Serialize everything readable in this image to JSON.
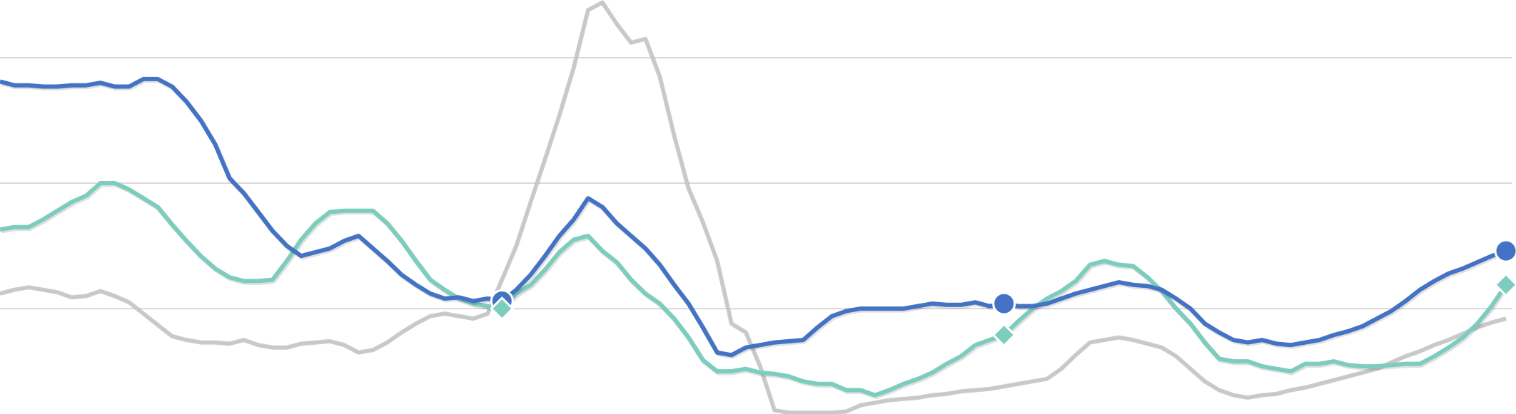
{
  "chart_data": {
    "type": "line",
    "title": "",
    "xlabel": "",
    "ylabel": "",
    "x_points": 106,
    "ylim": [
      1.6,
      34.6
    ],
    "gridlines": [
      10,
      20,
      30
    ],
    "grid": "horizontal",
    "legend": "none",
    "series": [
      {
        "color": "#4472C4",
        "marker": "circle",
        "marker_indices": [
          35,
          70,
          105
        ],
        "values": [
          28.1,
          27.8,
          27.8,
          27.7,
          27.7,
          27.8,
          27.8,
          28.0,
          27.7,
          27.7,
          28.3,
          28.3,
          27.7,
          26.5,
          25.0,
          23.1,
          20.4,
          19.2,
          17.7,
          16.2,
          15.0,
          14.2,
          14.5,
          14.8,
          15.4,
          15.8,
          14.8,
          13.8,
          12.7,
          11.9,
          11.2,
          10.8,
          10.9,
          10.6,
          10.8,
          10.6,
          11.5,
          12.7,
          14.2,
          15.8,
          17.1,
          18.8,
          18.1,
          16.8,
          15.8,
          14.8,
          13.5,
          11.9,
          10.4,
          8.5,
          6.5,
          6.3,
          6.9,
          7.1,
          7.3,
          7.4,
          7.5,
          8.5,
          9.4,
          9.8,
          10.0,
          10.0,
          10.0,
          10.0,
          10.2,
          10.4,
          10.3,
          10.3,
          10.5,
          10.2,
          10.4,
          10.2,
          10.2,
          10.4,
          10.8,
          11.2,
          11.5,
          11.8,
          12.1,
          11.9,
          11.8,
          11.5,
          10.8,
          10.0,
          8.8,
          8.1,
          7.5,
          7.3,
          7.5,
          7.2,
          7.1,
          7.3,
          7.5,
          7.9,
          8.2,
          8.6,
          9.2,
          9.8,
          10.6,
          11.5,
          12.2,
          12.8,
          13.2,
          13.7,
          14.2,
          14.6
        ]
      },
      {
        "color": "#7DCDBE",
        "marker": "diamond",
        "marker_indices": [
          35,
          70,
          105
        ],
        "values": [
          16.3,
          16.5,
          16.5,
          17.1,
          17.8,
          18.5,
          19.0,
          20.0,
          20.0,
          19.5,
          18.8,
          18.1,
          16.7,
          15.4,
          14.2,
          13.2,
          12.5,
          12.2,
          12.2,
          12.3,
          13.8,
          15.5,
          16.8,
          17.7,
          17.8,
          17.8,
          17.8,
          16.8,
          15.4,
          13.8,
          12.3,
          11.5,
          10.8,
          10.4,
          10.2,
          10.0,
          11.2,
          11.9,
          13.1,
          14.5,
          15.5,
          15.8,
          14.6,
          13.7,
          12.3,
          11.2,
          10.4,
          9.2,
          7.7,
          5.9,
          5.0,
          5.0,
          5.2,
          4.9,
          4.8,
          4.6,
          4.2,
          4.0,
          4.0,
          3.5,
          3.5,
          3.1,
          3.5,
          4.0,
          4.4,
          4.9,
          5.6,
          6.2,
          7.1,
          7.5,
          7.9,
          9.0,
          10.0,
          10.8,
          11.4,
          12.2,
          13.5,
          13.8,
          13.5,
          13.4,
          12.5,
          11.4,
          10.0,
          8.8,
          7.3,
          6.0,
          5.8,
          5.8,
          5.4,
          5.2,
          5.0,
          5.6,
          5.6,
          5.8,
          5.5,
          5.4,
          5.4,
          5.5,
          5.6,
          5.6,
          6.2,
          6.9,
          7.7,
          8.8,
          10.2,
          11.9
        ]
      },
      {
        "color": "#C8C8C8",
        "marker": "none",
        "values": [
          11.2,
          11.5,
          11.7,
          11.5,
          11.3,
          10.9,
          11.0,
          11.4,
          11.0,
          10.5,
          9.6,
          8.7,
          7.8,
          7.5,
          7.3,
          7.3,
          7.2,
          7.5,
          7.1,
          6.9,
          6.9,
          7.2,
          7.3,
          7.4,
          7.1,
          6.5,
          6.7,
          7.3,
          8.1,
          8.8,
          9.4,
          9.6,
          9.4,
          9.2,
          9.6,
          12.3,
          15.0,
          18.5,
          21.9,
          25.4,
          29.2,
          33.8,
          34.4,
          32.7,
          31.2,
          31.5,
          28.5,
          23.8,
          19.6,
          16.9,
          13.8,
          8.8,
          8.1,
          5.4,
          1.9,
          1.7,
          1.7,
          1.7,
          1.7,
          1.8,
          2.3,
          2.5,
          2.7,
          2.8,
          2.9,
          3.1,
          3.2,
          3.4,
          3.5,
          3.6,
          3.8,
          4.0,
          4.2,
          4.4,
          5.2,
          6.3,
          7.3,
          7.5,
          7.7,
          7.5,
          7.2,
          6.9,
          6.2,
          5.2,
          4.2,
          3.5,
          3.1,
          2.9,
          3.1,
          3.2,
          3.5,
          3.7,
          4.0,
          4.3,
          4.6,
          4.9,
          5.2,
          5.7,
          6.2,
          6.6,
          7.1,
          7.5,
          8.0,
          8.5,
          8.9,
          9.2
        ]
      }
    ]
  }
}
